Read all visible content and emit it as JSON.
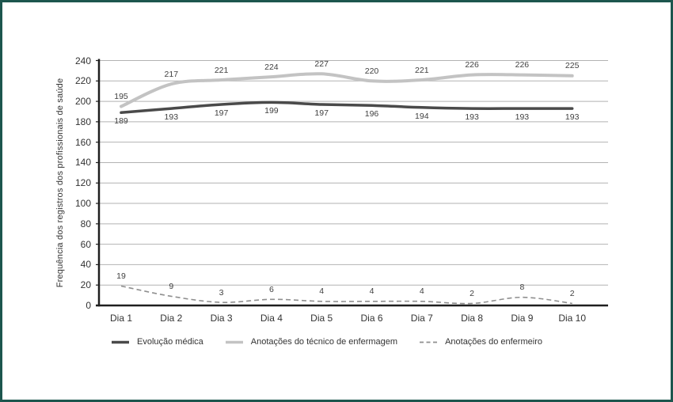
{
  "frame": {
    "border_color": "#1d564e",
    "background": "#ffffff"
  },
  "chart_data": {
    "type": "line",
    "title": "",
    "xlabel": "",
    "ylabel": "Frequência dos registros dos profissionais de saúde",
    "categories": [
      "Dia 1",
      "Dia 2",
      "Dia 3",
      "Dia 4",
      "Dia 5",
      "Dia 6",
      "Dia 7",
      "Dia 8",
      "Dia 9",
      "Dia 10"
    ],
    "ylim": [
      0,
      240
    ],
    "ytick_step": 20,
    "grid": "horizontal",
    "legend_position": "bottom",
    "colors": {
      "grid": "#b2b2b2",
      "axis": "#1f1f1f",
      "text": "#333333"
    },
    "series": [
      {
        "name": "Evolução médica",
        "values": [
          189,
          193,
          197,
          199,
          197,
          196,
          194,
          193,
          193,
          193
        ],
        "color": "#4a4a4a",
        "style": "solid",
        "label_position": "below"
      },
      {
        "name": "Anotações do técnico de enfermagem",
        "values": [
          195,
          217,
          221,
          224,
          227,
          220,
          221,
          226,
          226,
          225
        ],
        "color": "#c3c3c3",
        "style": "solid",
        "label_position": "above"
      },
      {
        "name": "Anotações do enfermeiro",
        "values": [
          19,
          9,
          3,
          6,
          4,
          4,
          4,
          2,
          8,
          2
        ],
        "color": "#8f8f8f",
        "style": "dashed",
        "label_position": "above"
      }
    ]
  }
}
